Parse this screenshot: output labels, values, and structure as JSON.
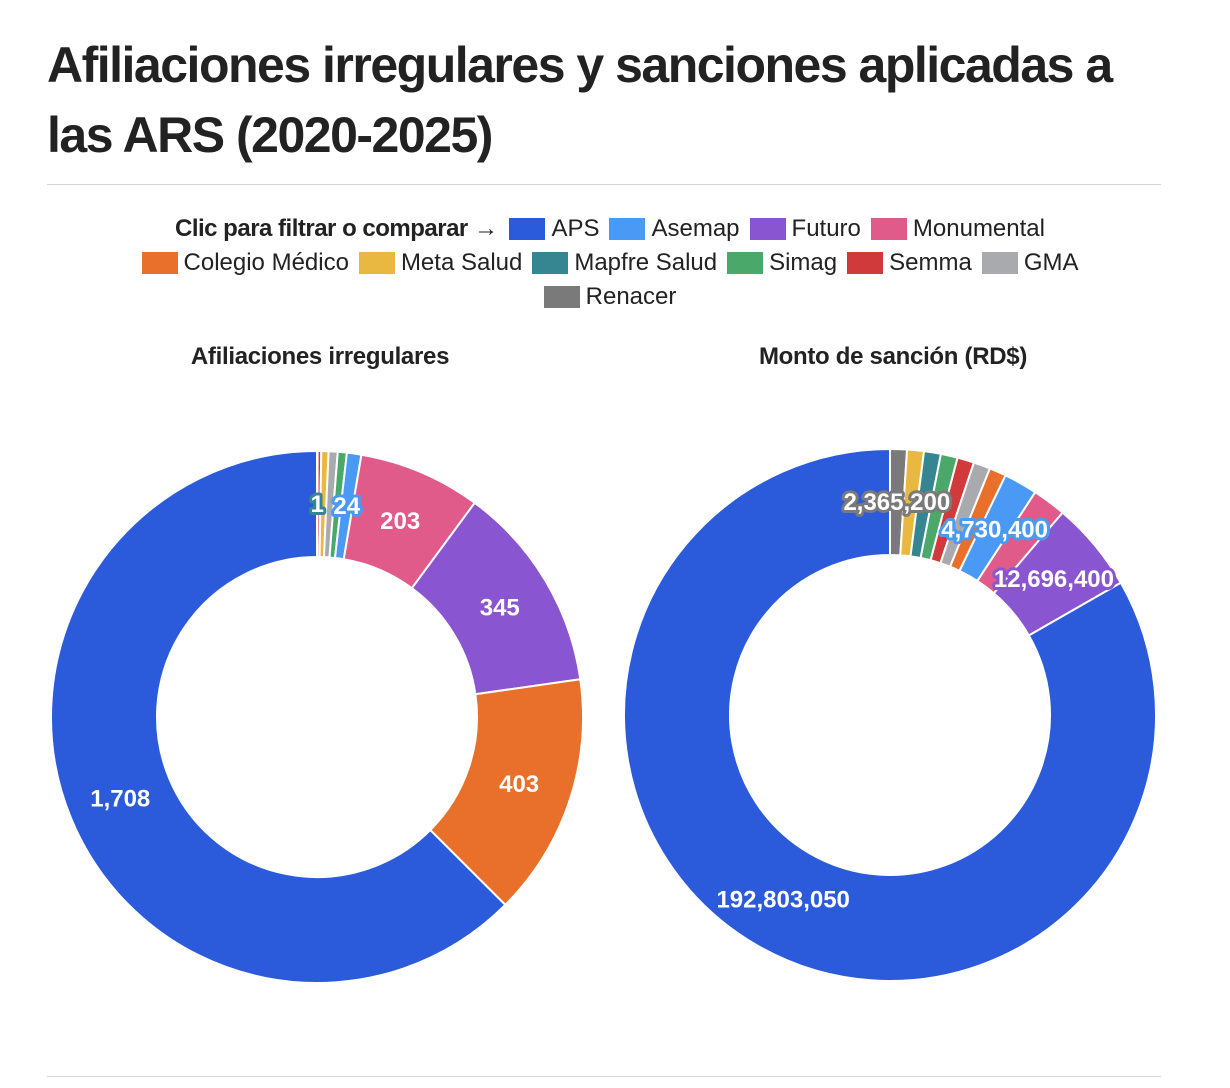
{
  "title": "Afiliaciones irregulares y sanciones aplicadas a las ARS (2020-2025)",
  "legend": {
    "prompt": "Clic para filtrar o comparar →",
    "items": [
      {
        "name": "APS",
        "color": "#2b5bdb"
      },
      {
        "name": "Asemap",
        "color": "#4a9af5"
      },
      {
        "name": "Futuro",
        "color": "#8a55d0"
      },
      {
        "name": "Monumental",
        "color": "#e05a8a"
      },
      {
        "name": "Colegio Médico",
        "color": "#e8702a"
      },
      {
        "name": "Meta Salud",
        "color": "#e8b840"
      },
      {
        "name": "Mapfre Salud",
        "color": "#358690"
      },
      {
        "name": "Simag",
        "color": "#4aa86a"
      },
      {
        "name": "Semma",
        "color": "#d03a3a"
      },
      {
        "name": "GMA",
        "color": "#a8aaae"
      },
      {
        "name": "Renacer",
        "color": "#7a7a7a"
      }
    ]
  },
  "chart_data": [
    {
      "type": "pie",
      "donut": true,
      "title": "Afiliaciones irregulares",
      "slices": [
        {
          "name": "Mapfre Salud",
          "value": 1,
          "label": "1"
        },
        {
          "name": "Semma",
          "value": 6
        },
        {
          "name": "Meta Salud",
          "value": 12
        },
        {
          "name": "GMA",
          "value": 15
        },
        {
          "name": "Simag",
          "value": 15
        },
        {
          "name": "Asemap",
          "value": 24,
          "label": "24"
        },
        {
          "name": "Monumental",
          "value": 203,
          "label": "203"
        },
        {
          "name": "Futuro",
          "value": 345,
          "label": "345"
        },
        {
          "name": "Colegio Médico",
          "value": 403,
          "label": "403"
        },
        {
          "name": "APS",
          "value": 1708,
          "label": "1,708"
        }
      ]
    },
    {
      "type": "pie",
      "donut": true,
      "title": "Monto de sanción (RD$)",
      "slices": [
        {
          "name": "Renacer",
          "value": 2365200,
          "label": "2,365,200"
        },
        {
          "name": "Meta Salud",
          "value": 2365200
        },
        {
          "name": "Mapfre Salud",
          "value": 2365200
        },
        {
          "name": "Simag",
          "value": 2365200
        },
        {
          "name": "Semma",
          "value": 2365200
        },
        {
          "name": "GMA",
          "value": 2365200
        },
        {
          "name": "Colegio Médico",
          "value": 2365200
        },
        {
          "name": "Asemap",
          "value": 4730400,
          "label": "4,730,400"
        },
        {
          "name": "Monumental",
          "value": 4730400
        },
        {
          "name": "Futuro",
          "value": 12696400,
          "label": "12,696,400"
        },
        {
          "name": "APS",
          "value": 192803050,
          "label": "192,803,050"
        }
      ]
    }
  ]
}
